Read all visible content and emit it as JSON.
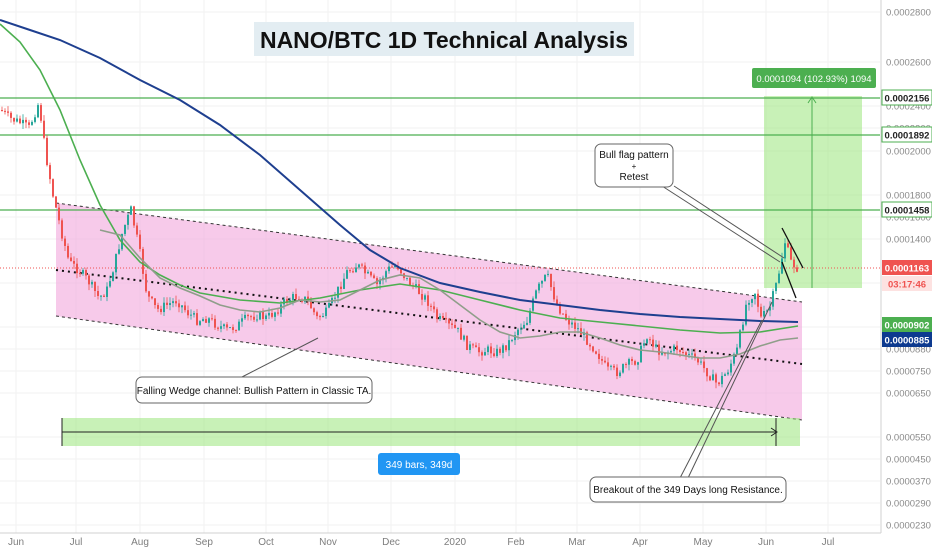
{
  "chart_data": {
    "type": "candlestick",
    "title": "NANO/BTC 1D Technical Analysis",
    "x_labels": [
      "Jun",
      "Jul",
      "Aug",
      "Sep",
      "Oct",
      "Nov",
      "Dec",
      "2020",
      "Feb",
      "Mar",
      "Apr",
      "May",
      "Jun",
      "Jul"
    ],
    "y_ticks": [
      "0.0002800",
      "0.0002600",
      "0.0002400",
      "0.0002200",
      "0.0002000",
      "0.0001800",
      "0.0001600",
      "0.0001400",
      "0.0001200",
      "0.0001000",
      "0.0000880",
      "0.0000750",
      "0.0000650",
      "0.0000550",
      "0.0000450",
      "0.0000370",
      "0.0000290",
      "0.0000230"
    ],
    "y_range": [
      2.3e-05,
      0.00029
    ],
    "y_scale": "log",
    "price_tags": [
      {
        "label": "0.0002156",
        "style": "white",
        "color": "#4caf50"
      },
      {
        "label": "0.0001892",
        "style": "white",
        "color": "#4caf50"
      },
      {
        "label": "0.0001458",
        "style": "white",
        "color": "#4caf50"
      },
      {
        "label": "0.0001163",
        "style": "filled",
        "color": "#ef5350"
      },
      {
        "label": "03:17:46",
        "style": "light",
        "color": "#ef5350"
      },
      {
        "label": "0.0000902",
        "style": "filled",
        "color": "#4caf50"
      },
      {
        "label": "0.0000885",
        "style": "filled",
        "color": "#0d3a8f"
      }
    ],
    "measure_label": "0.0001094 (102.93%) 1094",
    "bars_label": "349 bars, 349d",
    "annotations": [
      {
        "text": "Falling Wedge channel: Bullish Pattern in Classic TA."
      },
      {
        "text": "Bull flag pattern\n+\nRetest"
      },
      {
        "text": "Breakout of the 349 Days long Resistance."
      }
    ],
    "colors": {
      "up": "#26a69a",
      "down": "#ef5350",
      "ma_long": "#1e3f8f",
      "ma_mid": "#4caf50",
      "ma_short": "#8f9e8a",
      "channel": "#f2a6dc",
      "target_zone": "#9be67b",
      "level_line": "#4caf50"
    }
  }
}
